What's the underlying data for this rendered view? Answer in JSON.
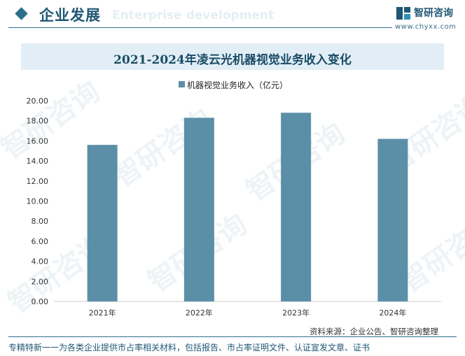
{
  "header": {
    "title": "企业发展",
    "subtitle_ghost": "Enterprise development",
    "brand_name": "智研咨询",
    "brand_url": "www.chyxx.com"
  },
  "chart_data": {
    "type": "bar",
    "title": "2021-2024年凌云光机器视觉业务收入变化",
    "categories": [
      "2021年",
      "2022年",
      "2023年",
      "2024年"
    ],
    "series": [
      {
        "name": "机器视觉业务收入（亿元）",
        "values": [
          15.6,
          18.3,
          18.8,
          16.2
        ]
      }
    ],
    "ylim": [
      0,
      20
    ],
    "yticks": [
      "0.00",
      "2.00",
      "4.00",
      "6.00",
      "8.00",
      "10.00",
      "12.00",
      "14.00",
      "16.00",
      "18.00",
      "20.00"
    ],
    "legend": "top-center",
    "grid": false,
    "bar_color": "#5b8fa8"
  },
  "source": "资料来源：企业公告、智研咨询整理",
  "footer": "专精特新一一为各类企业提供市占率相关材料，包括报告、市占率证明文件、认证宣发文章、证书",
  "watermark": {
    "brand_name": "智研咨询"
  }
}
